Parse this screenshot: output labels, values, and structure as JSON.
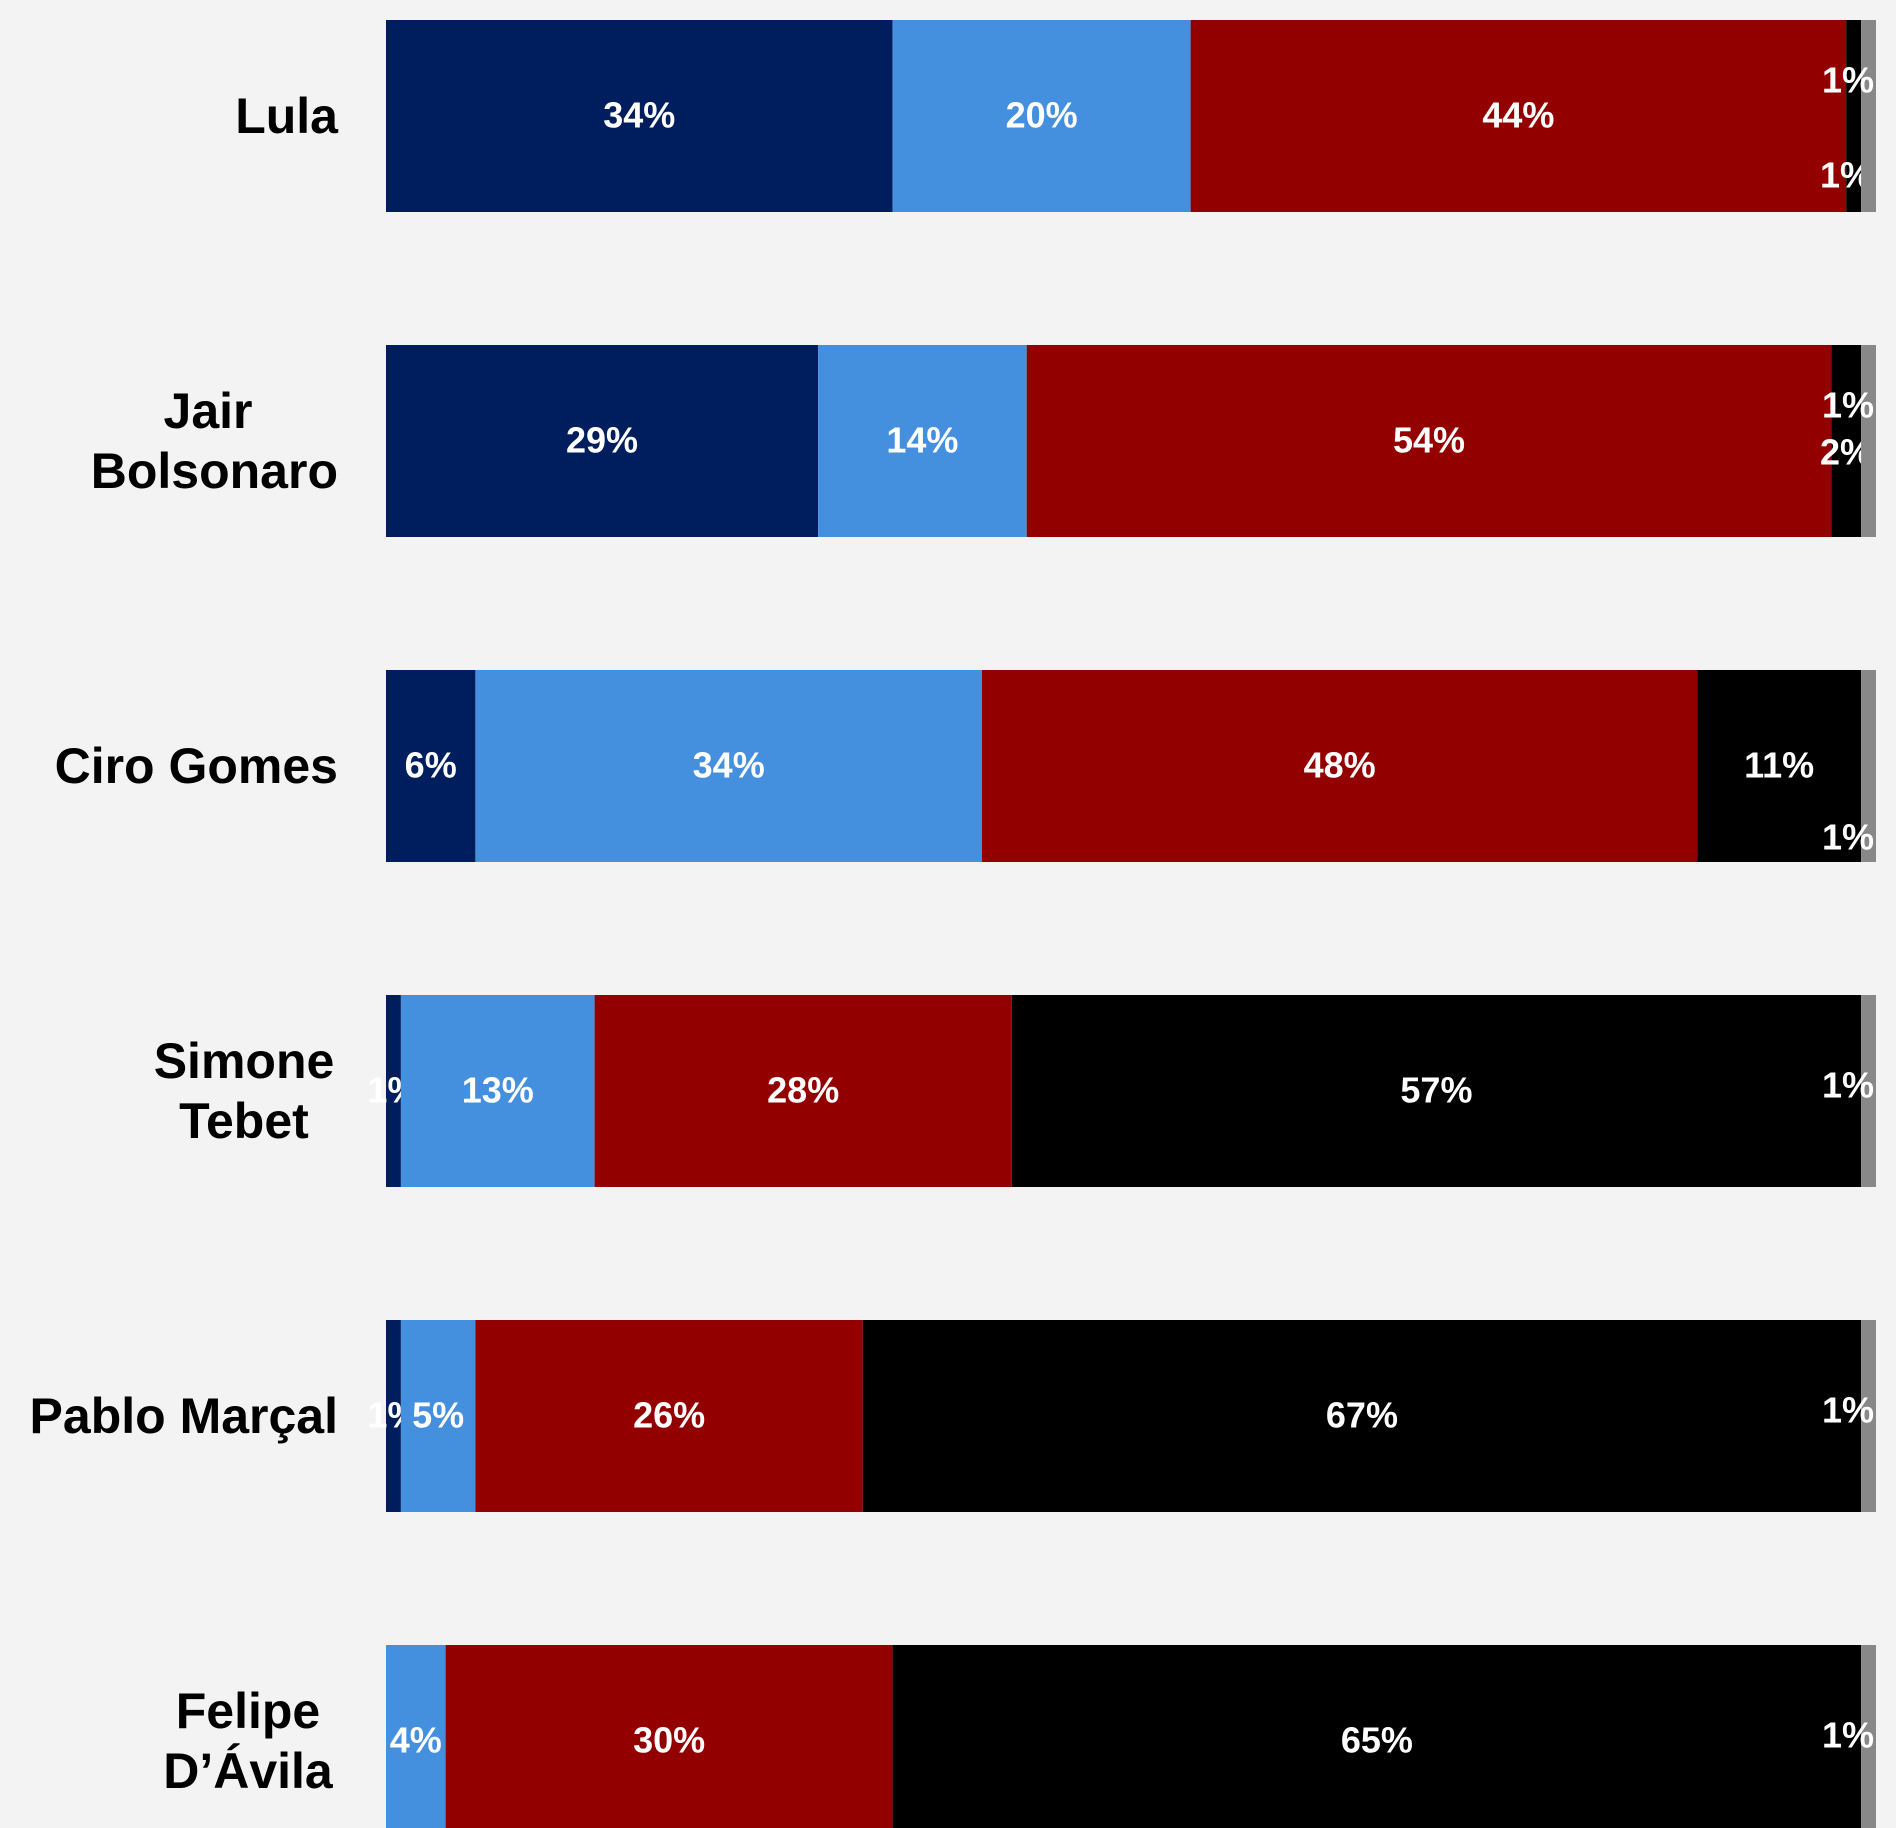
{
  "chart_data": {
    "type": "bar",
    "orientation": "horizontal",
    "stacked": true,
    "categories": [
      [
        "Lula"
      ],
      [
        "Jair",
        "Bolsonaro"
      ],
      [
        "Ciro Gomes"
      ],
      [
        "Simone",
        "Tebet"
      ],
      [
        "Pablo Marçal"
      ],
      [
        "Felipe",
        "D’Ávila"
      ]
    ],
    "series": [
      {
        "color": "#001e5e",
        "values": [
          34,
          29,
          6,
          1,
          1,
          0
        ],
        "labels": [
          "34%",
          "29%",
          "6%",
          "1%",
          "1%",
          ""
        ]
      },
      {
        "color": "#4490df",
        "values": [
          20,
          14,
          34,
          13,
          5,
          4
        ],
        "labels": [
          "20%",
          "14%",
          "34%",
          "13%",
          "5%",
          "4%"
        ]
      },
      {
        "color": "#930000",
        "values": [
          44,
          54,
          48,
          28,
          26,
          30
        ],
        "labels": [
          "44%",
          "54%",
          "48%",
          "28%",
          "26%",
          "30%"
        ]
      },
      {
        "color": "#000000",
        "values": [
          1,
          2,
          11,
          57,
          67,
          65
        ],
        "labels": [
          "1%",
          "2%",
          "11%",
          "57%",
          "67%",
          "65%"
        ]
      },
      {
        "color": "#888888",
        "values": [
          1,
          1,
          1,
          1,
          1,
          1
        ],
        "labels": [
          "1%",
          "1%",
          "1%",
          "1%",
          "1%",
          "1%"
        ]
      }
    ],
    "xlim": [
      0,
      100
    ],
    "legend": "none",
    "grid": false
  }
}
